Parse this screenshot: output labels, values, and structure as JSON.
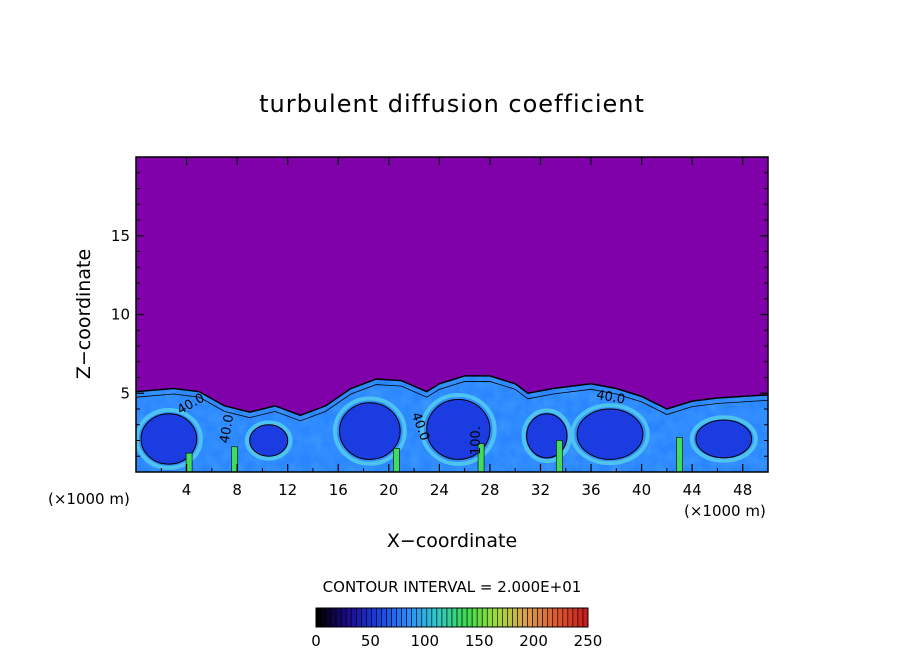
{
  "chart_data": {
    "type": "heatmap",
    "title": "turbulent diffusion coefficient",
    "xlabel": "X−coordinate",
    "ylabel": "Z−coordinate",
    "x_unit_left": "(×1000 m)",
    "x_unit_right": "(×1000 m)",
    "xlim": [
      0,
      50
    ],
    "ylim": [
      0,
      20
    ],
    "x_ticks": [
      4,
      8,
      12,
      16,
      20,
      24,
      28,
      32,
      36,
      40,
      44,
      48
    ],
    "y_ticks": [
      5,
      10,
      15
    ],
    "background_value": 0,
    "boundary_layer_top_km": [
      [
        0,
        5.1
      ],
      [
        3,
        5.3
      ],
      [
        5,
        5.1
      ],
      [
        7,
        4.2
      ],
      [
        9,
        3.8
      ],
      [
        11,
        4.2
      ],
      [
        13,
        3.6
      ],
      [
        15,
        4.2
      ],
      [
        17,
        5.3
      ],
      [
        19,
        5.9
      ],
      [
        21,
        5.8
      ],
      [
        23,
        5.1
      ],
      [
        24,
        5.6
      ],
      [
        26,
        6.1
      ],
      [
        28,
        6.1
      ],
      [
        30,
        5.6
      ],
      [
        31,
        5.0
      ],
      [
        33,
        5.3
      ],
      [
        36,
        5.6
      ],
      [
        38,
        5.3
      ],
      [
        40,
        4.8
      ],
      [
        42,
        4.0
      ],
      [
        44,
        4.5
      ],
      [
        46,
        4.7
      ],
      [
        48,
        4.8
      ],
      [
        50,
        4.9
      ]
    ],
    "contour_labels": [
      {
        "text": "40.0",
        "x": 4.5,
        "z": 4.1,
        "angle": -30
      },
      {
        "text": "40.0",
        "x": 7.5,
        "z": 2.7,
        "angle": -80
      },
      {
        "text": "40.0",
        "x": 22.2,
        "z": 2.8,
        "angle": 70
      },
      {
        "text": "100.",
        "x": 27.2,
        "z": 2.0,
        "angle": -90
      },
      {
        "text": "40.0",
        "x": 37.5,
        "z": 4.5,
        "angle": 10
      }
    ],
    "colorbar": {
      "title": "CONTOUR INTERVAL = 2.000E+01",
      "interval": 20,
      "min": 0,
      "max": 250,
      "tick_values": [
        0,
        50,
        100,
        150,
        200,
        250
      ],
      "colors": [
        "#000000",
        "#1e0a8c",
        "#1a3fe0",
        "#2a8cff",
        "#32c8c8",
        "#3cdc50",
        "#a0dc3c",
        "#dca050",
        "#dc5a32",
        "#c81e1e"
      ]
    },
    "field_colors": {
      "background": "#8000aa",
      "core": "#1a3ce0",
      "mid": "#2a86ff",
      "high": "#4ec3f0",
      "peak": "#40dc60"
    }
  }
}
